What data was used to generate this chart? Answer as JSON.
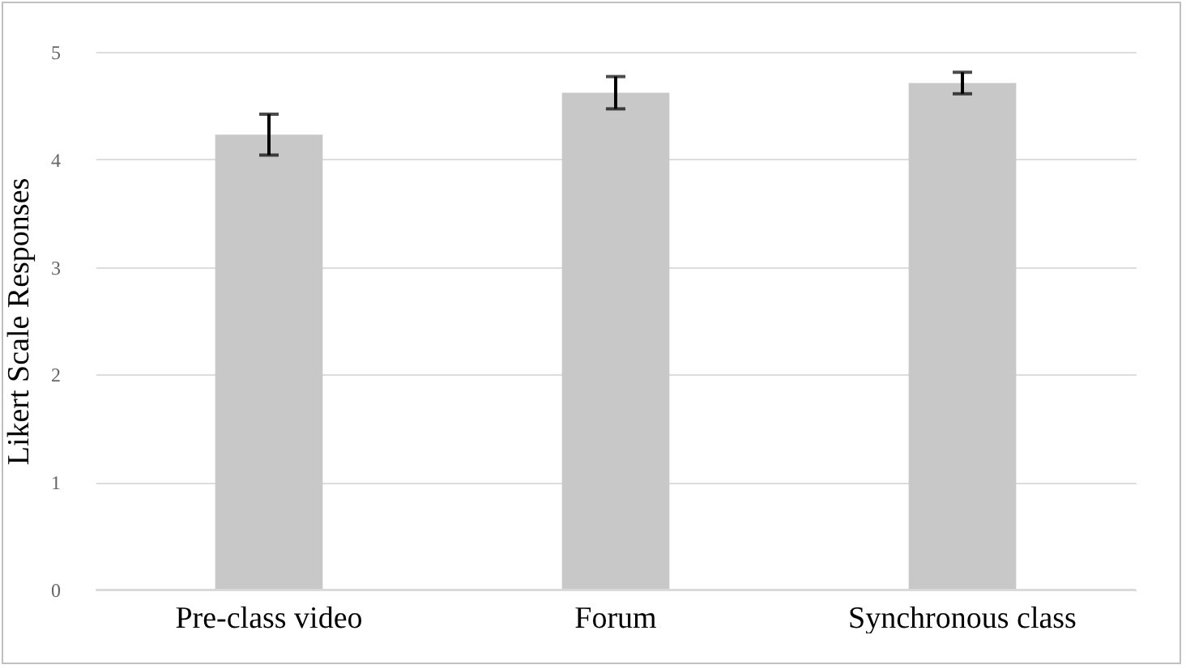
{
  "chart_data": {
    "type": "bar",
    "ylabel": "Likert Scale Responses",
    "categories": [
      "Pre-class video",
      "Forum",
      "Synchronous class"
    ],
    "series": [
      {
        "color": "#c8c8c8",
        "values": [
          4.23,
          4.62,
          4.71
        ],
        "errors": [
          0.19,
          0.15,
          0.1
        ]
      }
    ],
    "ylim": [
      0,
      5
    ],
    "yticks": [
      0,
      1,
      2,
      3,
      4,
      5
    ],
    "grid": "y"
  }
}
